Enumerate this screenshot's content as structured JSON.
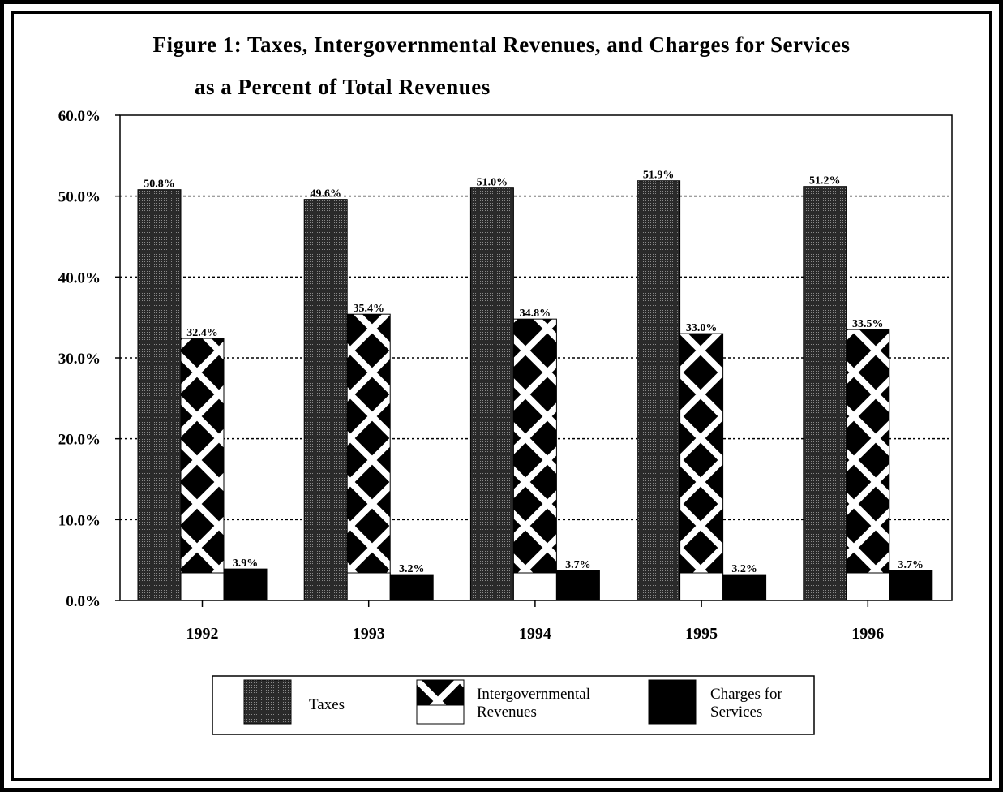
{
  "colors": {
    "background": "#ffffff",
    "ink": "#000000"
  },
  "chart_data": {
    "type": "bar",
    "title": "Figure 1: Taxes, Intergovernmental Revenues, and Charges for Services",
    "subtitle": "as a Percent of Total Revenues",
    "xlabel": "",
    "ylabel": "",
    "categories": [
      "1992",
      "1993",
      "1994",
      "1995",
      "1996"
    ],
    "ylim": [
      0,
      60
    ],
    "yticks": [
      0,
      10,
      20,
      30,
      40,
      50,
      60
    ],
    "ytick_labels": [
      "0.0%",
      "10.0%",
      "20.0%",
      "30.0%",
      "40.0%",
      "50.0%",
      "60.0%"
    ],
    "grid": true,
    "legend_position": "bottom-center",
    "series": [
      {
        "name": "Taxes",
        "pattern": "dotted-dark",
        "values": [
          50.8,
          49.6,
          51.0,
          51.9,
          51.2
        ],
        "labels": [
          "50.8%",
          "49.6%",
          "51.0%",
          "51.9%",
          "51.2%"
        ]
      },
      {
        "name": "Intergovernmental Revenues",
        "pattern": "crosshatch",
        "values": [
          32.4,
          35.4,
          34.8,
          33.0,
          33.5
        ],
        "labels": [
          "32.4%",
          "35.4%",
          "34.8%",
          "33.0%",
          "33.5%"
        ]
      },
      {
        "name": "Charges for Services",
        "pattern": "solid-black",
        "values": [
          3.9,
          3.2,
          3.7,
          3.2,
          3.7
        ],
        "labels": [
          "3.9%",
          "3.2%",
          "3.7%",
          "3.2%",
          "3.7%"
        ]
      }
    ],
    "legend": [
      {
        "lines": [
          "Taxes"
        ]
      },
      {
        "lines": [
          "Intergovernmental",
          "Revenues"
        ]
      },
      {
        "lines": [
          "Charges for",
          "Services"
        ]
      }
    ]
  }
}
